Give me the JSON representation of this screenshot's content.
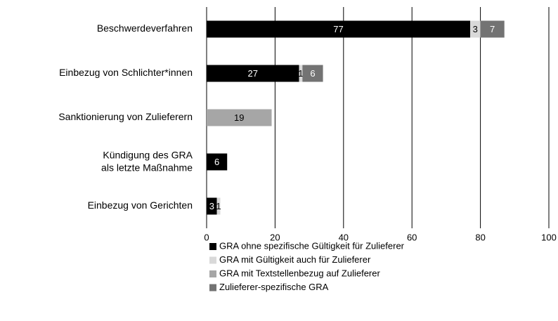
{
  "chart_data": {
    "type": "stacked-barh",
    "categories": [
      "Beschwerdeverfahren",
      "Einbezug von Schlichter*innen",
      "Sanktionierung von Zulieferern",
      "Kündigung des GRA\nals letzte Maßnahme",
      "Einbezug von Gerichten"
    ],
    "series": [
      {
        "name": "GRA ohne spezifische Gültigkeit für Zulieferer",
        "color": "#000000",
        "values": [
          77,
          27,
          null,
          6,
          3
        ]
      },
      {
        "name": "GRA mit Gültigkeit auch für Zulieferer",
        "color": "#d9d9d9",
        "values": [
          3,
          1,
          null,
          null,
          1
        ]
      },
      {
        "name": "GRA mit Textstellenbezug auf Zulieferer",
        "color": "#a6a6a6",
        "values": [
          null,
          null,
          19,
          null,
          null
        ]
      },
      {
        "name": "Zulieferer-spezifische GRA",
        "color": "#737373",
        "values": [
          7,
          6,
          null,
          null,
          null
        ]
      }
    ],
    "xlim": [
      0,
      100
    ],
    "xticks": [
      0,
      20,
      40,
      60,
      80,
      100
    ],
    "grid": true
  }
}
